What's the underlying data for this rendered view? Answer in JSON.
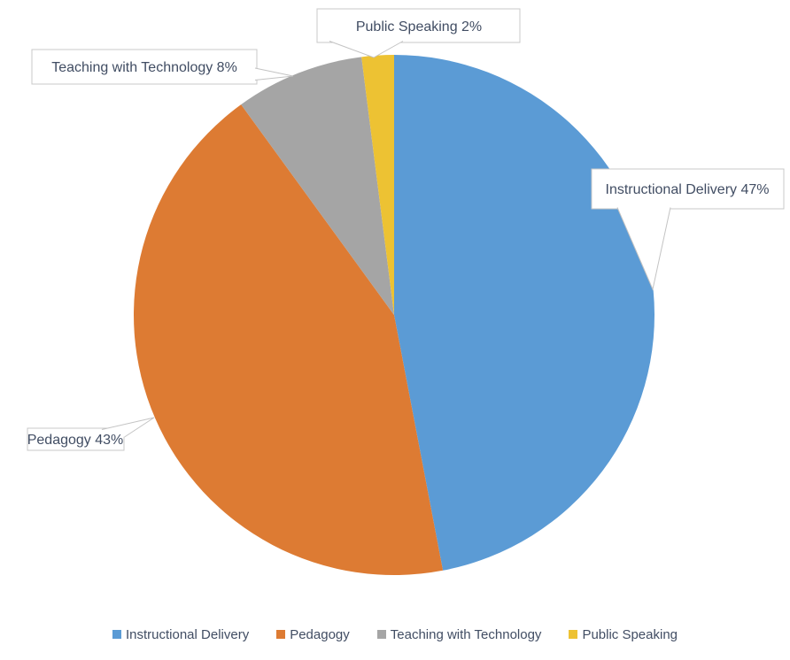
{
  "chart_data": {
    "type": "pie",
    "title": "",
    "categories": [
      "Instructional Delivery",
      "Pedagogy",
      "Teaching with Technology",
      "Public Speaking"
    ],
    "values": [
      47,
      43,
      8,
      2
    ],
    "unit": "%",
    "colors": [
      "#5B9BD5",
      "#DD7B33",
      "#A5A5A5",
      "#EDC233"
    ],
    "start_angle_deg": 0,
    "direction": "clockwise",
    "legend_position": "bottom",
    "data_labels": [
      "Instructional Delivery 47%",
      "Pedagogy 43%",
      "Teaching with Technology 8%",
      "Public Speaking 2%"
    ]
  },
  "callouts": [
    {
      "label": "Instructional Delivery 47%"
    },
    {
      "label": "Pedagogy 43%"
    },
    {
      "label": "Teaching with Technology 8%"
    },
    {
      "label": "Public Speaking 2%"
    }
  ],
  "legend": {
    "items": [
      {
        "label": "Instructional Delivery"
      },
      {
        "label": "Pedagogy"
      },
      {
        "label": "Teaching with Technology"
      },
      {
        "label": "Public Speaking"
      }
    ]
  },
  "styles": {
    "text_color": "#414d63",
    "callout_border_color": "#c8c8c8",
    "background": "#ffffff"
  }
}
